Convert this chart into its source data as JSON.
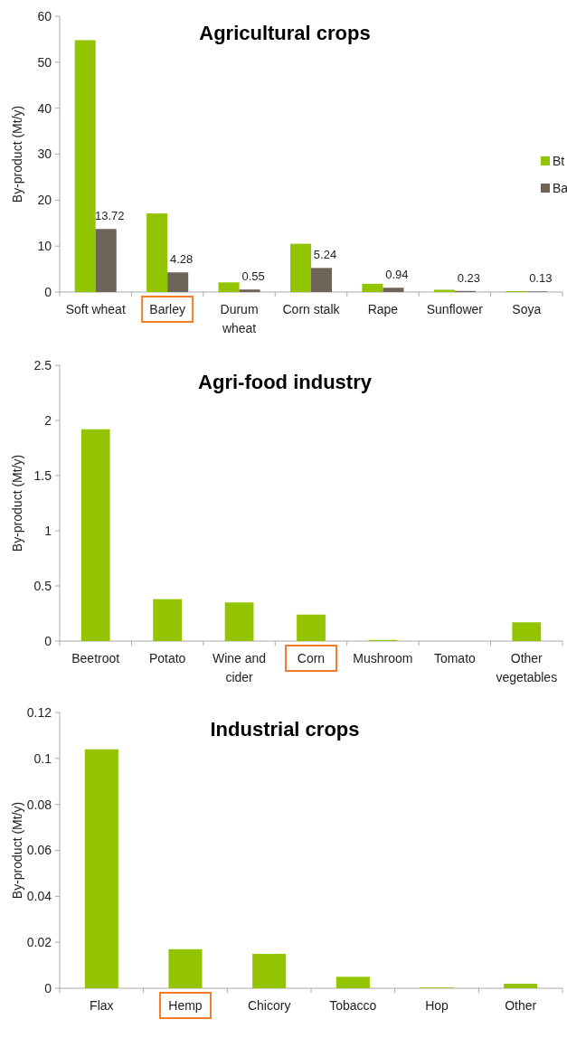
{
  "chart_data": [
    {
      "type": "bar",
      "title": "Agricultural crops",
      "ylabel": "By-product (Mt/y)",
      "categories": [
        "Soft wheat",
        "Barley",
        "Durum wheat",
        "Corn stalk",
        "Rape",
        "Sunflower",
        "Soya"
      ],
      "series": [
        {
          "name": "Bt",
          "color": "#92c500",
          "values": [
            54.8,
            17.1,
            2.1,
            10.5,
            1.8,
            0.5,
            0.2
          ]
        },
        {
          "name": "Ba",
          "color": "#6e6457",
          "values": [
            13.72,
            4.28,
            0.55,
            5.24,
            0.94,
            0.23,
            0.13
          ],
          "value_labels": [
            "13.72",
            "4.28",
            "0.55",
            "5.24",
            "0.94",
            "0.23",
            "0.13"
          ]
        }
      ],
      "ylim": [
        0,
        60
      ],
      "yticks": [
        0,
        10,
        20,
        30,
        40,
        50,
        60
      ],
      "legend": "right",
      "grid": false
    },
    {
      "type": "bar",
      "title": "Agri-food industry",
      "ylabel": "By-product (Mt/y)",
      "categories": [
        "Beetroot",
        "Potato",
        "Wine and cider",
        "Corn",
        "Mushroom",
        "Tomato",
        "Other vegetables"
      ],
      "series": [
        {
          "color": "#92c500",
          "values": [
            1.92,
            0.38,
            0.35,
            0.24,
            0.01,
            0,
            0.17
          ]
        }
      ],
      "ylim": [
        0,
        2.5
      ],
      "yticks": [
        0,
        0.5,
        1,
        1.5,
        2,
        2.5
      ],
      "grid": false
    },
    {
      "type": "bar",
      "title": "Industrial crops",
      "ylabel": "By-product (Mt/y)",
      "categories": [
        "Flax",
        "Hemp",
        "Chicory",
        "Tobacco",
        "Hop",
        "Other"
      ],
      "series": [
        {
          "color": "#92c500",
          "values": [
            0.104,
            0.017,
            0.015,
            0.005,
            0.0003,
            0.002
          ]
        }
      ],
      "ylim": [
        0,
        0.12
      ],
      "yticks": [
        0,
        0.02,
        0.04,
        0.06,
        0.08,
        0.1,
        0.12
      ],
      "grid": false
    }
  ]
}
